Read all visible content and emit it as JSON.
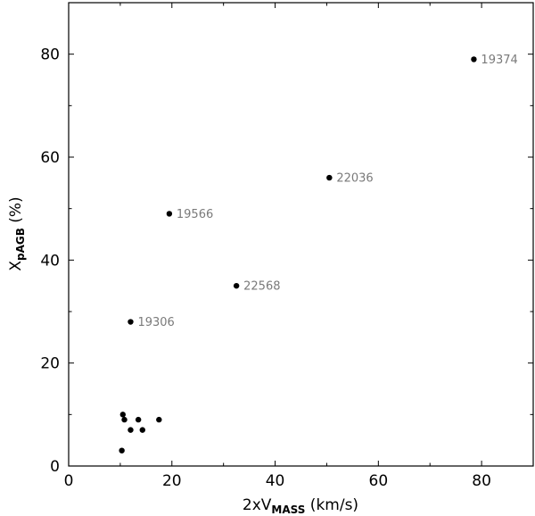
{
  "chart_data": {
    "type": "scatter",
    "title": "",
    "xlabel": {
      "prefix": "2xV",
      "sub": "MASS",
      "suffix": " (km/s)"
    },
    "ylabel": {
      "prefix": "X",
      "sub": "pAGB",
      "suffix": " (%)"
    },
    "xlim": [
      0,
      90
    ],
    "ylim": [
      0,
      90
    ],
    "xticks": [
      0,
      20,
      40,
      60,
      80
    ],
    "yticks": [
      0,
      20,
      40,
      60,
      80
    ],
    "grid": false,
    "marker_color": "#000000",
    "label_color": "#7a7a7a",
    "points": [
      {
        "x": 78.5,
        "y": 79,
        "label": "19374"
      },
      {
        "x": 50.5,
        "y": 56,
        "label": "22036"
      },
      {
        "x": 19.5,
        "y": 49,
        "label": "19566"
      },
      {
        "x": 32.5,
        "y": 35,
        "label": "22568"
      },
      {
        "x": 12,
        "y": 28,
        "label": "19306"
      },
      {
        "x": 10.5,
        "y": 10,
        "label": ""
      },
      {
        "x": 10.8,
        "y": 9,
        "label": ""
      },
      {
        "x": 13.5,
        "y": 9,
        "label": ""
      },
      {
        "x": 17.5,
        "y": 9,
        "label": ""
      },
      {
        "x": 12,
        "y": 7,
        "label": ""
      },
      {
        "x": 14.3,
        "y": 7,
        "label": ""
      },
      {
        "x": 10.3,
        "y": 3,
        "label": ""
      }
    ]
  }
}
